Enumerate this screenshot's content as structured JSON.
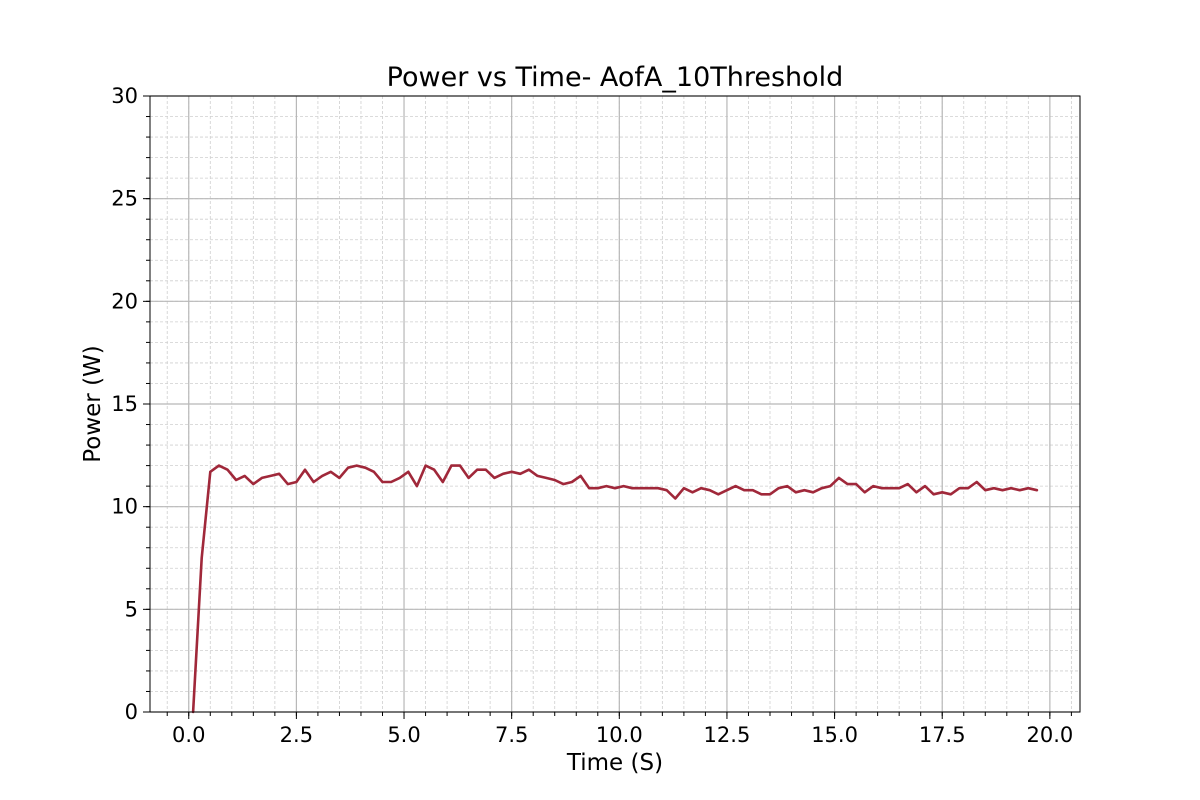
{
  "chart_data": {
    "type": "line",
    "title": "Power vs Time- AofA_10Threshold",
    "xlabel": "Time (S)",
    "ylabel": "Power (W)",
    "xlim": [
      -0.9,
      20.7
    ],
    "ylim": [
      0,
      30
    ],
    "grid": true,
    "minor_grid": true,
    "x_ticks": [
      0.0,
      2.5,
      5.0,
      7.5,
      10.0,
      12.5,
      15.0,
      17.5,
      20.0
    ],
    "x_tick_labels": [
      "0.0",
      "2.5",
      "5.0",
      "7.5",
      "10.0",
      "12.5",
      "15.0",
      "17.5",
      "20.0"
    ],
    "y_ticks": [
      0,
      5,
      10,
      15,
      20,
      25,
      30
    ],
    "y_tick_labels": [
      "0",
      "5",
      "10",
      "15",
      "20",
      "25",
      "30"
    ],
    "series": [
      {
        "color": "#a0283a",
        "x": [
          0.1,
          0.3,
          0.5,
          0.7,
          0.9,
          1.1,
          1.3,
          1.5,
          1.7,
          1.9,
          2.1,
          2.3,
          2.5,
          2.7,
          2.9,
          3.1,
          3.3,
          3.5,
          3.7,
          3.9,
          4.1,
          4.3,
          4.5,
          4.7,
          4.9,
          5.1,
          5.3,
          5.5,
          5.7,
          5.9,
          6.1,
          6.3,
          6.5,
          6.7,
          6.9,
          7.1,
          7.3,
          7.5,
          7.7,
          7.9,
          8.1,
          8.3,
          8.5,
          8.7,
          8.9,
          9.1,
          9.3,
          9.5,
          9.7,
          9.9,
          10.1,
          10.3,
          10.5,
          10.7,
          10.9,
          11.1,
          11.3,
          11.5,
          11.7,
          11.9,
          12.1,
          12.3,
          12.5,
          12.7,
          12.9,
          13.1,
          13.3,
          13.5,
          13.7,
          13.9,
          14.1,
          14.3,
          14.5,
          14.7,
          14.9,
          15.1,
          15.3,
          15.5,
          15.7,
          15.9,
          16.1,
          16.3,
          16.5,
          16.7,
          16.9,
          17.1,
          17.3,
          17.5,
          17.7,
          17.9,
          18.1,
          18.3,
          18.5,
          18.7,
          18.9,
          19.1,
          19.3,
          19.5,
          19.7
        ],
        "y": [
          0.0,
          7.5,
          11.7,
          12.0,
          11.8,
          11.3,
          11.5,
          11.1,
          11.4,
          11.5,
          11.6,
          11.1,
          11.2,
          11.8,
          11.2,
          11.5,
          11.7,
          11.4,
          11.9,
          12.0,
          11.9,
          11.7,
          11.2,
          11.2,
          11.4,
          11.7,
          11.0,
          12.0,
          11.8,
          11.2,
          12.0,
          12.0,
          11.4,
          11.8,
          11.8,
          11.4,
          11.6,
          11.7,
          11.6,
          11.8,
          11.5,
          11.4,
          11.3,
          11.1,
          11.2,
          11.5,
          10.9,
          10.9,
          11.0,
          10.9,
          11.0,
          10.9,
          10.9,
          10.9,
          10.9,
          10.8,
          10.4,
          10.9,
          10.7,
          10.9,
          10.8,
          10.6,
          10.8,
          11.0,
          10.8,
          10.8,
          10.6,
          10.6,
          10.9,
          11.0,
          10.7,
          10.8,
          10.7,
          10.9,
          11.0,
          11.4,
          11.1,
          11.1,
          10.7,
          11.0,
          10.9,
          10.9,
          10.9,
          11.1,
          10.7,
          11.0,
          10.6,
          10.7,
          10.6,
          10.9,
          10.9,
          11.2,
          10.8,
          10.9,
          10.8,
          10.9,
          10.8,
          10.9,
          10.8
        ]
      }
    ]
  }
}
